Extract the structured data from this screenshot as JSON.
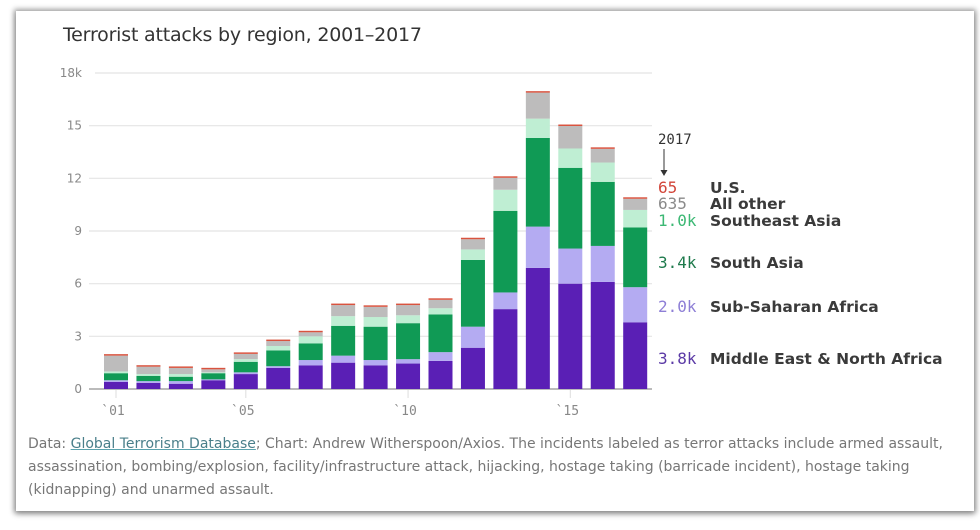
{
  "chart_data": {
    "type": "bar",
    "stacked": true,
    "title": "Terrorist attacks by region, 2001–2017",
    "xlabel": "",
    "ylabel": "",
    "ylim": [
      0,
      18000
    ],
    "y_ticks": [
      0,
      3000,
      6000,
      9000,
      12000,
      15000,
      18000
    ],
    "y_tick_labels": [
      "0",
      "3",
      "6",
      "9",
      "12",
      "15",
      "18k"
    ],
    "x_tick_labels": [
      {
        "year": 2001,
        "label": "`01"
      },
      {
        "year": 2005,
        "label": "`05"
      },
      {
        "year": 2010,
        "label": "`10"
      },
      {
        "year": 2015,
        "label": "`15"
      }
    ],
    "grid": true,
    "categories": [
      2001,
      2002,
      2003,
      2004,
      2005,
      2006,
      2007,
      2008,
      2009,
      2010,
      2011,
      2012,
      2013,
      2014,
      2015,
      2016,
      2017
    ],
    "series": [
      {
        "name": "Middle East & North Africa",
        "color": "#5a1fb5",
        "label_color": "#5b3aa6",
        "values": [
          400,
          350,
          300,
          500,
          850,
          1200,
          1350,
          1500,
          1350,
          1450,
          1600,
          2350,
          4550,
          6900,
          6000,
          6100,
          3800
        ],
        "end_label": "3.8k"
      },
      {
        "name": "Sub-Saharan Africa",
        "color": "#b4abf2",
        "label_color": "#8e7fd6",
        "values": [
          100,
          100,
          150,
          50,
          100,
          100,
          300,
          400,
          300,
          250,
          500,
          1200,
          950,
          2350,
          2000,
          2050,
          2000
        ],
        "end_label": "2.0k"
      },
      {
        "name": "South Asia",
        "color": "#109a55",
        "label_color": "#1e7a4c",
        "values": [
          400,
          300,
          250,
          350,
          600,
          900,
          950,
          1700,
          1900,
          2050,
          2150,
          3800,
          4650,
          5050,
          4600,
          3650,
          3400
        ],
        "end_label": "3.4k"
      },
      {
        "name": "Southeast Asia",
        "color": "#bfeed3",
        "label_color": "#3cb874",
        "values": [
          100,
          100,
          150,
          50,
          150,
          250,
          400,
          550,
          550,
          450,
          350,
          600,
          1200,
          1100,
          1100,
          1100,
          1000
        ],
        "end_label": "1.0k"
      },
      {
        "name": "All other",
        "color": "#bdbcbc",
        "label_color": "#8a8a8a",
        "values": [
          900,
          420,
          350,
          170,
          300,
          280,
          230,
          630,
          580,
          580,
          480,
          580,
          680,
          1480,
          1280,
          780,
          635
        ],
        "end_label": "635"
      },
      {
        "name": "U.S.",
        "color": "#d9533f",
        "label_color": "#d2463a",
        "values": [
          50,
          30,
          50,
          30,
          20,
          20,
          20,
          20,
          20,
          20,
          20,
          20,
          20,
          20,
          20,
          20,
          65
        ],
        "end_label": "65"
      }
    ],
    "annotation": {
      "text": "2017",
      "arrow": "down"
    }
  },
  "caption": {
    "prefix": "Data: ",
    "link_text": "Global Terrorism Database",
    "rest": "; Chart: Andrew Witherspoon/Axios. The incidents labeled as terror attacks include armed assault, assassination, bombing/explosion, facility/infrastructure attack, hijacking, hostage taking (barricade incident), hostage taking (kidnapping) and unarmed assault."
  }
}
